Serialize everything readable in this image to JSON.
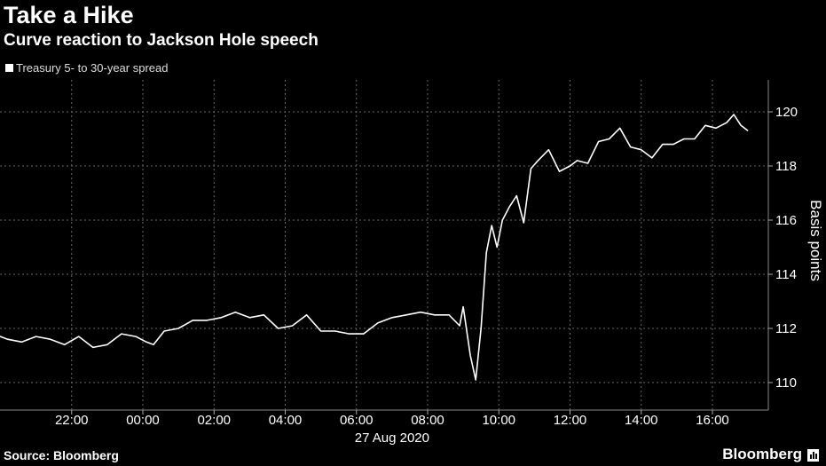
{
  "header": {
    "title": "Take a Hike",
    "subtitle": "Curve reaction to Jackson Hole speech"
  },
  "footer": {
    "source": "Source: Bloomberg",
    "brand": "Bloomberg"
  },
  "chart_data": {
    "type": "line",
    "ylabel": "Basis points",
    "ylim": [
      109,
      121
    ],
    "yticks": [
      110,
      112,
      114,
      116,
      118,
      120
    ],
    "xticks": [
      {
        "label": "22:00",
        "hours": -2
      },
      {
        "label": "00:00",
        "hours": 0
      },
      {
        "label": "02:00",
        "hours": 2
      },
      {
        "label": "04:00",
        "hours": 4
      },
      {
        "label": "06:00",
        "hours": 6
      },
      {
        "label": "08:00",
        "hours": 8
      },
      {
        "label": "10:00",
        "hours": 10
      },
      {
        "label": "12:00",
        "hours": 12
      },
      {
        "label": "14:00",
        "hours": 14
      },
      {
        "label": "16:00",
        "hours": 16
      }
    ],
    "xdate_label": "27 Aug 2020",
    "xlim": [
      -5,
      17.5
    ],
    "grid": true,
    "legend_position": "top-left",
    "line_color": "#ffffff",
    "series": [
      {
        "name": "Treasury 5- to 30-year spread",
        "x": [
          -5.0,
          -4.6,
          -4.2,
          -3.8,
          -3.4,
          -3.0,
          -2.6,
          -2.2,
          -1.8,
          -1.4,
          -1.0,
          -0.6,
          -0.2,
          0.1,
          0.3,
          0.6,
          1.0,
          1.4,
          1.8,
          2.2,
          2.6,
          3.0,
          3.4,
          3.8,
          4.2,
          4.6,
          5.0,
          5.4,
          5.8,
          6.2,
          6.6,
          7.0,
          7.4,
          7.8,
          8.2,
          8.6,
          8.9,
          9.0,
          9.2,
          9.35,
          9.5,
          9.65,
          9.8,
          9.95,
          10.1,
          10.3,
          10.5,
          10.7,
          10.9,
          11.1,
          11.4,
          11.7,
          12.0,
          12.2,
          12.5,
          12.8,
          13.1,
          13.4,
          13.7,
          14.0,
          14.3,
          14.6,
          14.9,
          15.2,
          15.5,
          15.8,
          16.1,
          16.4,
          16.6,
          16.8,
          17.0
        ],
        "values": [
          111.8,
          111.5,
          111.8,
          111.6,
          111.5,
          111.7,
          111.6,
          111.4,
          111.7,
          111.3,
          111.4,
          111.8,
          111.7,
          111.5,
          111.4,
          111.9,
          112.0,
          112.3,
          112.3,
          112.4,
          112.6,
          112.4,
          112.5,
          112.0,
          112.1,
          112.5,
          111.9,
          111.9,
          111.8,
          111.8,
          112.2,
          112.4,
          112.5,
          112.6,
          112.5,
          112.5,
          112.1,
          112.8,
          111.0,
          110.1,
          112.0,
          114.8,
          115.8,
          115.0,
          116.0,
          116.5,
          116.9,
          115.9,
          117.9,
          118.2,
          118.6,
          117.8,
          118.0,
          118.2,
          118.1,
          118.9,
          119.0,
          119.4,
          118.7,
          118.6,
          118.3,
          118.8,
          118.8,
          119.0,
          119.0,
          119.5,
          119.4,
          119.6,
          119.9,
          119.5,
          119.3
        ]
      }
    ]
  }
}
